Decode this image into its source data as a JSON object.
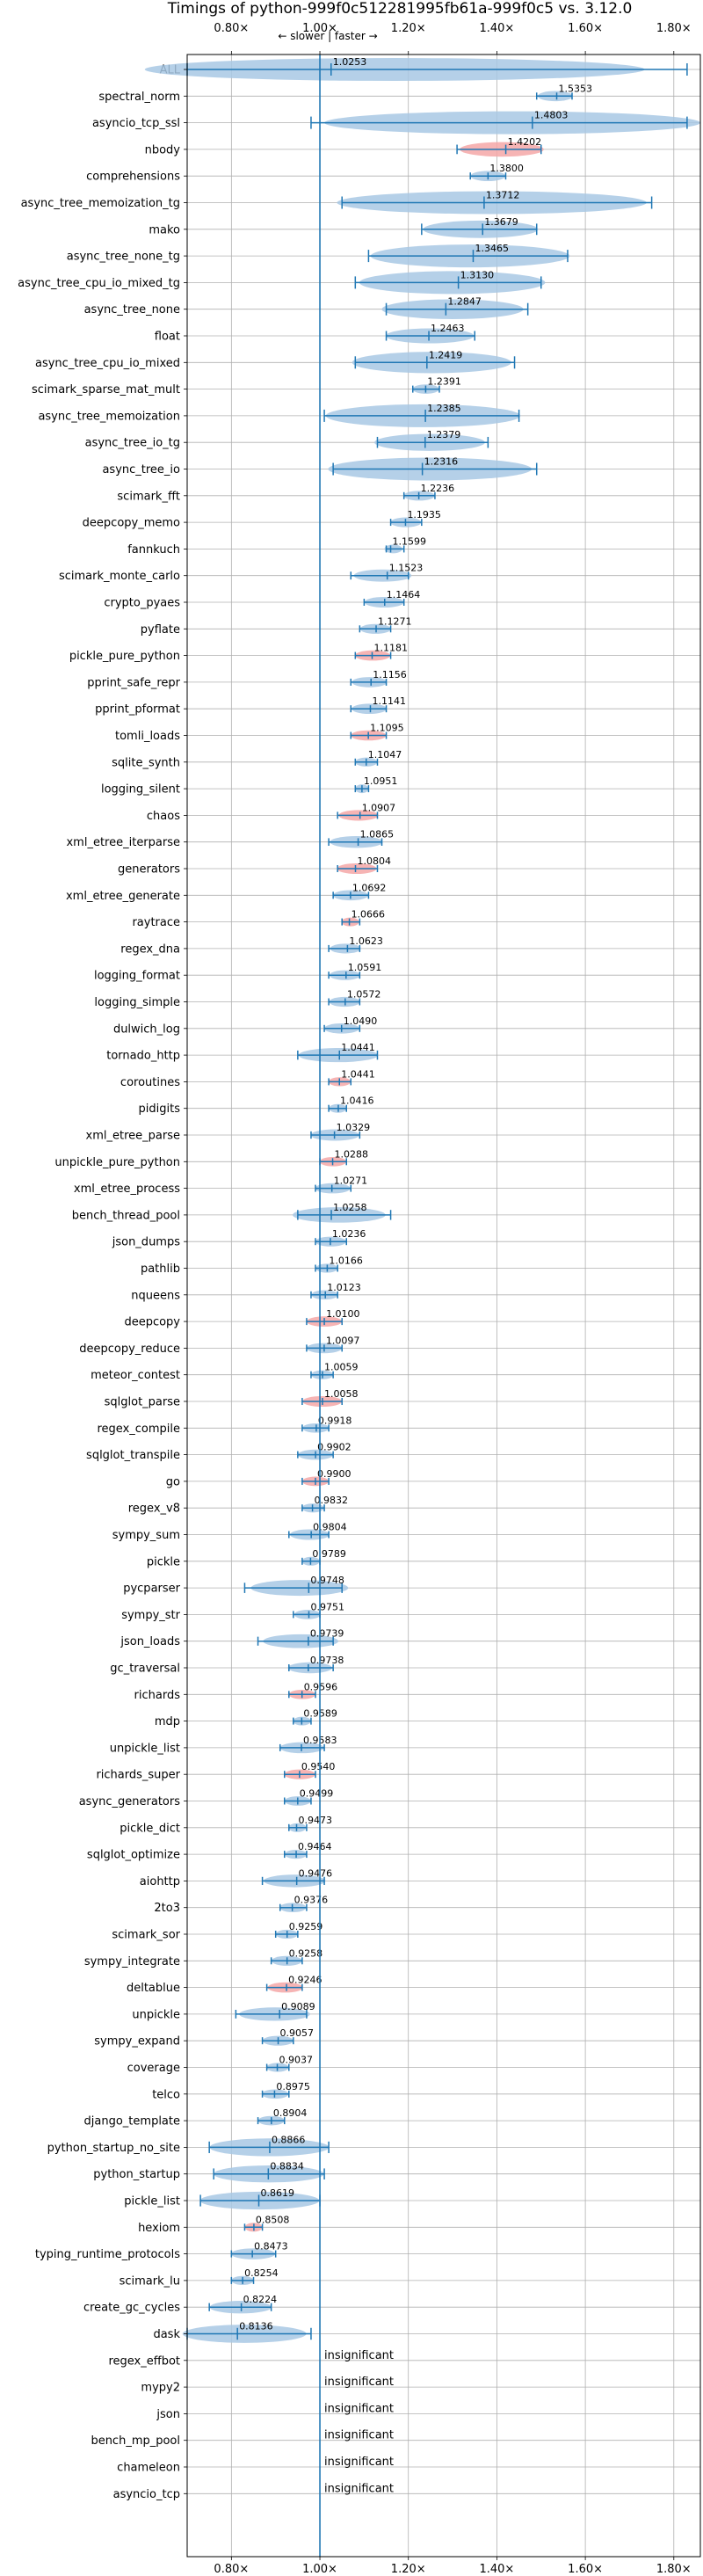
{
  "chart_data": {
    "type": "violin",
    "title": "Timings of python-999f0c512281995fb61a-999f0c5 vs. 3.12.0",
    "top_annotation": "← slower | faster →",
    "xlim": [
      0.7,
      1.86
    ],
    "x_ticks": [
      0.8,
      1.0,
      1.2,
      1.4,
      1.6,
      1.8
    ],
    "x_tick_labels": [
      "0.80×",
      "1.00×",
      "1.20×",
      "1.40×",
      "1.60×",
      "1.80×"
    ],
    "reference_line": 1.0,
    "grid": true,
    "colors": {
      "faster": "#a8c8e4",
      "slower": "#f4a7a7",
      "whisker": "#1f77b4",
      "reference": "#1f77b4"
    },
    "insignificant_label": "insignificant",
    "benchmarks": [
      {
        "name": "ALL",
        "value": 1.0253,
        "label": "1.0253",
        "lo": 0.7,
        "hi": 1.83,
        "color": "faster"
      },
      {
        "name": "spectral_norm",
        "value": 1.5353,
        "label": "1.5353",
        "lo": 1.49,
        "hi": 1.57,
        "color": "faster"
      },
      {
        "name": "asyncio_tcp_ssl",
        "value": 1.4803,
        "label": "1.4803",
        "lo": 0.98,
        "hi": 1.83,
        "color": "faster"
      },
      {
        "name": "nbody",
        "value": 1.4202,
        "label": "1.4202",
        "lo": 1.31,
        "hi": 1.5,
        "color": "slower"
      },
      {
        "name": "comprehensions",
        "value": 1.38,
        "label": "1.3800",
        "lo": 1.34,
        "hi": 1.42,
        "color": "faster"
      },
      {
        "name": "async_tree_memoization_tg",
        "value": 1.3712,
        "label": "1.3712",
        "lo": 1.05,
        "hi": 1.75,
        "color": "faster"
      },
      {
        "name": "mako",
        "value": 1.3679,
        "label": "1.3679",
        "lo": 1.23,
        "hi": 1.49,
        "color": "faster"
      },
      {
        "name": "async_tree_none_tg",
        "value": 1.3465,
        "label": "1.3465",
        "lo": 1.11,
        "hi": 1.56,
        "color": "faster"
      },
      {
        "name": "async_tree_cpu_io_mixed_tg",
        "value": 1.313,
        "label": "1.3130",
        "lo": 1.08,
        "hi": 1.5,
        "color": "faster"
      },
      {
        "name": "async_tree_none",
        "value": 1.2847,
        "label": "1.2847",
        "lo": 1.15,
        "hi": 1.47,
        "color": "faster"
      },
      {
        "name": "float",
        "value": 1.2463,
        "label": "1.2463",
        "lo": 1.15,
        "hi": 1.35,
        "color": "faster"
      },
      {
        "name": "async_tree_cpu_io_mixed",
        "value": 1.2419,
        "label": "1.2419",
        "lo": 1.08,
        "hi": 1.44,
        "color": "faster"
      },
      {
        "name": "scimark_sparse_mat_mult",
        "value": 1.2391,
        "label": "1.2391",
        "lo": 1.21,
        "hi": 1.27,
        "color": "faster"
      },
      {
        "name": "async_tree_memoization",
        "value": 1.2385,
        "label": "1.2385",
        "lo": 1.01,
        "hi": 1.45,
        "color": "faster"
      },
      {
        "name": "async_tree_io_tg",
        "value": 1.2379,
        "label": "1.2379",
        "lo": 1.13,
        "hi": 1.38,
        "color": "faster"
      },
      {
        "name": "async_tree_io",
        "value": 1.2316,
        "label": "1.2316",
        "lo": 1.03,
        "hi": 1.49,
        "color": "faster"
      },
      {
        "name": "scimark_fft",
        "value": 1.2236,
        "label": "1.2236",
        "lo": 1.19,
        "hi": 1.26,
        "color": "faster"
      },
      {
        "name": "deepcopy_memo",
        "value": 1.1935,
        "label": "1.1935",
        "lo": 1.16,
        "hi": 1.23,
        "color": "faster"
      },
      {
        "name": "fannkuch",
        "value": 1.1599,
        "label": "1.1599",
        "lo": 1.15,
        "hi": 1.19,
        "color": "faster"
      },
      {
        "name": "scimark_monte_carlo",
        "value": 1.1523,
        "label": "1.1523",
        "lo": 1.07,
        "hi": 1.2,
        "color": "faster"
      },
      {
        "name": "crypto_pyaes",
        "value": 1.1464,
        "label": "1.1464",
        "lo": 1.1,
        "hi": 1.19,
        "color": "faster"
      },
      {
        "name": "pyflate",
        "value": 1.1271,
        "label": "1.1271",
        "lo": 1.09,
        "hi": 1.16,
        "color": "faster"
      },
      {
        "name": "pickle_pure_python",
        "value": 1.1181,
        "label": "1.1181",
        "lo": 1.08,
        "hi": 1.16,
        "color": "slower"
      },
      {
        "name": "pprint_safe_repr",
        "value": 1.1156,
        "label": "1.1156",
        "lo": 1.07,
        "hi": 1.15,
        "color": "faster"
      },
      {
        "name": "pprint_pformat",
        "value": 1.1141,
        "label": "1.1141",
        "lo": 1.07,
        "hi": 1.15,
        "color": "faster"
      },
      {
        "name": "tomli_loads",
        "value": 1.1095,
        "label": "1.1095",
        "lo": 1.07,
        "hi": 1.15,
        "color": "slower"
      },
      {
        "name": "sqlite_synth",
        "value": 1.1047,
        "label": "1.1047",
        "lo": 1.08,
        "hi": 1.13,
        "color": "faster"
      },
      {
        "name": "logging_silent",
        "value": 1.0951,
        "label": "1.0951",
        "lo": 1.08,
        "hi": 1.11,
        "color": "faster"
      },
      {
        "name": "chaos",
        "value": 1.0907,
        "label": "1.0907",
        "lo": 1.04,
        "hi": 1.13,
        "color": "slower"
      },
      {
        "name": "xml_etree_iterparse",
        "value": 1.0865,
        "label": "1.0865",
        "lo": 1.02,
        "hi": 1.14,
        "color": "faster"
      },
      {
        "name": "generators",
        "value": 1.0804,
        "label": "1.0804",
        "lo": 1.04,
        "hi": 1.13,
        "color": "slower"
      },
      {
        "name": "xml_etree_generate",
        "value": 1.0692,
        "label": "1.0692",
        "lo": 1.03,
        "hi": 1.11,
        "color": "faster"
      },
      {
        "name": "raytrace",
        "value": 1.0666,
        "label": "1.0666",
        "lo": 1.05,
        "hi": 1.09,
        "color": "slower"
      },
      {
        "name": "regex_dna",
        "value": 1.0623,
        "label": "1.0623",
        "lo": 1.02,
        "hi": 1.09,
        "color": "faster"
      },
      {
        "name": "logging_format",
        "value": 1.0591,
        "label": "1.0591",
        "lo": 1.02,
        "hi": 1.09,
        "color": "faster"
      },
      {
        "name": "logging_simple",
        "value": 1.0572,
        "label": "1.0572",
        "lo": 1.02,
        "hi": 1.09,
        "color": "faster"
      },
      {
        "name": "dulwich_log",
        "value": 1.049,
        "label": "1.0490",
        "lo": 1.01,
        "hi": 1.09,
        "color": "faster"
      },
      {
        "name": "tornado_http",
        "value": 1.0441,
        "label": "1.0441",
        "lo": 0.95,
        "hi": 1.13,
        "color": "faster"
      },
      {
        "name": "coroutines",
        "value": 1.0441,
        "label": "1.0441",
        "lo": 1.02,
        "hi": 1.07,
        "color": "slower"
      },
      {
        "name": "pidigits",
        "value": 1.0416,
        "label": "1.0416",
        "lo": 1.02,
        "hi": 1.06,
        "color": "faster"
      },
      {
        "name": "xml_etree_parse",
        "value": 1.0329,
        "label": "1.0329",
        "lo": 0.98,
        "hi": 1.09,
        "color": "faster"
      },
      {
        "name": "unpickle_pure_python",
        "value": 1.0288,
        "label": "1.0288",
        "lo": 1.0,
        "hi": 1.06,
        "color": "slower"
      },
      {
        "name": "xml_etree_process",
        "value": 1.0271,
        "label": "1.0271",
        "lo": 0.99,
        "hi": 1.07,
        "color": "faster"
      },
      {
        "name": "bench_thread_pool",
        "value": 1.0258,
        "label": "1.0258",
        "lo": 0.95,
        "hi": 1.16,
        "color": "faster"
      },
      {
        "name": "json_dumps",
        "value": 1.0236,
        "label": "1.0236",
        "lo": 0.99,
        "hi": 1.06,
        "color": "faster"
      },
      {
        "name": "pathlib",
        "value": 1.0166,
        "label": "1.0166",
        "lo": 0.99,
        "hi": 1.04,
        "color": "faster"
      },
      {
        "name": "nqueens",
        "value": 1.0123,
        "label": "1.0123",
        "lo": 0.98,
        "hi": 1.04,
        "color": "faster"
      },
      {
        "name": "deepcopy",
        "value": 1.01,
        "label": "1.0100",
        "lo": 0.97,
        "hi": 1.05,
        "color": "slower"
      },
      {
        "name": "deepcopy_reduce",
        "value": 1.0097,
        "label": "1.0097",
        "lo": 0.97,
        "hi": 1.05,
        "color": "faster"
      },
      {
        "name": "meteor_contest",
        "value": 1.0059,
        "label": "1.0059",
        "lo": 0.98,
        "hi": 1.03,
        "color": "faster"
      },
      {
        "name": "sqlglot_parse",
        "value": 1.0058,
        "label": "1.0058",
        "lo": 0.96,
        "hi": 1.05,
        "color": "slower"
      },
      {
        "name": "regex_compile",
        "value": 0.9918,
        "label": "0.9918",
        "lo": 0.96,
        "hi": 1.02,
        "color": "faster"
      },
      {
        "name": "sqlglot_transpile",
        "value": 0.9902,
        "label": "0.9902",
        "lo": 0.95,
        "hi": 1.03,
        "color": "faster"
      },
      {
        "name": "go",
        "value": 0.99,
        "label": "0.9900",
        "lo": 0.96,
        "hi": 1.02,
        "color": "slower"
      },
      {
        "name": "regex_v8",
        "value": 0.9832,
        "label": "0.9832",
        "lo": 0.96,
        "hi": 1.01,
        "color": "faster"
      },
      {
        "name": "sympy_sum",
        "value": 0.9804,
        "label": "0.9804",
        "lo": 0.93,
        "hi": 1.02,
        "color": "faster"
      },
      {
        "name": "pickle",
        "value": 0.9789,
        "label": "0.9789",
        "lo": 0.96,
        "hi": 1.0,
        "color": "faster"
      },
      {
        "name": "pycparser",
        "value": 0.9748,
        "label": "0.9748",
        "lo": 0.83,
        "hi": 1.05,
        "color": "faster"
      },
      {
        "name": "sympy_str",
        "value": 0.9751,
        "label": "0.9751",
        "lo": 0.94,
        "hi": 1.0,
        "color": "faster"
      },
      {
        "name": "json_loads",
        "value": 0.9739,
        "label": "0.9739",
        "lo": 0.86,
        "hi": 1.03,
        "color": "faster"
      },
      {
        "name": "gc_traversal",
        "value": 0.9738,
        "label": "0.9738",
        "lo": 0.93,
        "hi": 1.03,
        "color": "faster"
      },
      {
        "name": "richards",
        "value": 0.9596,
        "label": "0.9596",
        "lo": 0.93,
        "hi": 0.99,
        "color": "slower"
      },
      {
        "name": "mdp",
        "value": 0.9589,
        "label": "0.9589",
        "lo": 0.94,
        "hi": 0.98,
        "color": "faster"
      },
      {
        "name": "unpickle_list",
        "value": 0.9583,
        "label": "0.9583",
        "lo": 0.91,
        "hi": 1.01,
        "color": "faster"
      },
      {
        "name": "richards_super",
        "value": 0.954,
        "label": "0.9540",
        "lo": 0.92,
        "hi": 0.99,
        "color": "slower"
      },
      {
        "name": "async_generators",
        "value": 0.9499,
        "label": "0.9499",
        "lo": 0.92,
        "hi": 0.98,
        "color": "faster"
      },
      {
        "name": "pickle_dict",
        "value": 0.9473,
        "label": "0.9473",
        "lo": 0.93,
        "hi": 0.97,
        "color": "faster"
      },
      {
        "name": "sqlglot_optimize",
        "value": 0.9464,
        "label": "0.9464",
        "lo": 0.92,
        "hi": 0.97,
        "color": "faster"
      },
      {
        "name": "aiohttp",
        "value": 0.9476,
        "label": "0.9476",
        "lo": 0.87,
        "hi": 1.01,
        "color": "faster"
      },
      {
        "name": "2to3",
        "value": 0.9376,
        "label": "0.9376",
        "lo": 0.91,
        "hi": 0.97,
        "color": "faster"
      },
      {
        "name": "scimark_sor",
        "value": 0.9259,
        "label": "0.9259",
        "lo": 0.9,
        "hi": 0.95,
        "color": "faster"
      },
      {
        "name": "sympy_integrate",
        "value": 0.9258,
        "label": "0.9258",
        "lo": 0.89,
        "hi": 0.96,
        "color": "faster"
      },
      {
        "name": "deltablue",
        "value": 0.9246,
        "label": "0.9246",
        "lo": 0.88,
        "hi": 0.96,
        "color": "slower"
      },
      {
        "name": "unpickle",
        "value": 0.9089,
        "label": "0.9089",
        "lo": 0.81,
        "hi": 0.97,
        "color": "faster"
      },
      {
        "name": "sympy_expand",
        "value": 0.9057,
        "label": "0.9057",
        "lo": 0.87,
        "hi": 0.94,
        "color": "faster"
      },
      {
        "name": "coverage",
        "value": 0.9037,
        "label": "0.9037",
        "lo": 0.88,
        "hi": 0.93,
        "color": "faster"
      },
      {
        "name": "telco",
        "value": 0.8975,
        "label": "0.8975",
        "lo": 0.87,
        "hi": 0.93,
        "color": "faster"
      },
      {
        "name": "django_template",
        "value": 0.8904,
        "label": "0.8904",
        "lo": 0.86,
        "hi": 0.92,
        "color": "faster"
      },
      {
        "name": "python_startup_no_site",
        "value": 0.8866,
        "label": "0.8866",
        "lo": 0.75,
        "hi": 1.02,
        "color": "faster"
      },
      {
        "name": "python_startup",
        "value": 0.8834,
        "label": "0.8834",
        "lo": 0.76,
        "hi": 1.01,
        "color": "faster"
      },
      {
        "name": "pickle_list",
        "value": 0.8619,
        "label": "0.8619",
        "lo": 0.73,
        "hi": 1.0,
        "color": "faster"
      },
      {
        "name": "hexiom",
        "value": 0.8508,
        "label": "0.8508",
        "lo": 0.83,
        "hi": 0.87,
        "color": "slower"
      },
      {
        "name": "typing_runtime_protocols",
        "value": 0.8473,
        "label": "0.8473",
        "lo": 0.8,
        "hi": 0.9,
        "color": "faster"
      },
      {
        "name": "scimark_lu",
        "value": 0.8254,
        "label": "0.8254",
        "lo": 0.8,
        "hi": 0.85,
        "color": "faster"
      },
      {
        "name": "create_gc_cycles",
        "value": 0.8224,
        "label": "0.8224",
        "lo": 0.75,
        "hi": 0.89,
        "color": "faster"
      },
      {
        "name": "dask",
        "value": 0.8136,
        "label": "0.8136",
        "lo": 0.7,
        "hi": 0.98,
        "color": "faster"
      },
      {
        "name": "regex_effbot",
        "insignificant": true
      },
      {
        "name": "mypy2",
        "insignificant": true
      },
      {
        "name": "json",
        "insignificant": true
      },
      {
        "name": "bench_mp_pool",
        "insignificant": true
      },
      {
        "name": "chameleon",
        "insignificant": true
      },
      {
        "name": "asyncio_tcp",
        "insignificant": true
      }
    ]
  }
}
